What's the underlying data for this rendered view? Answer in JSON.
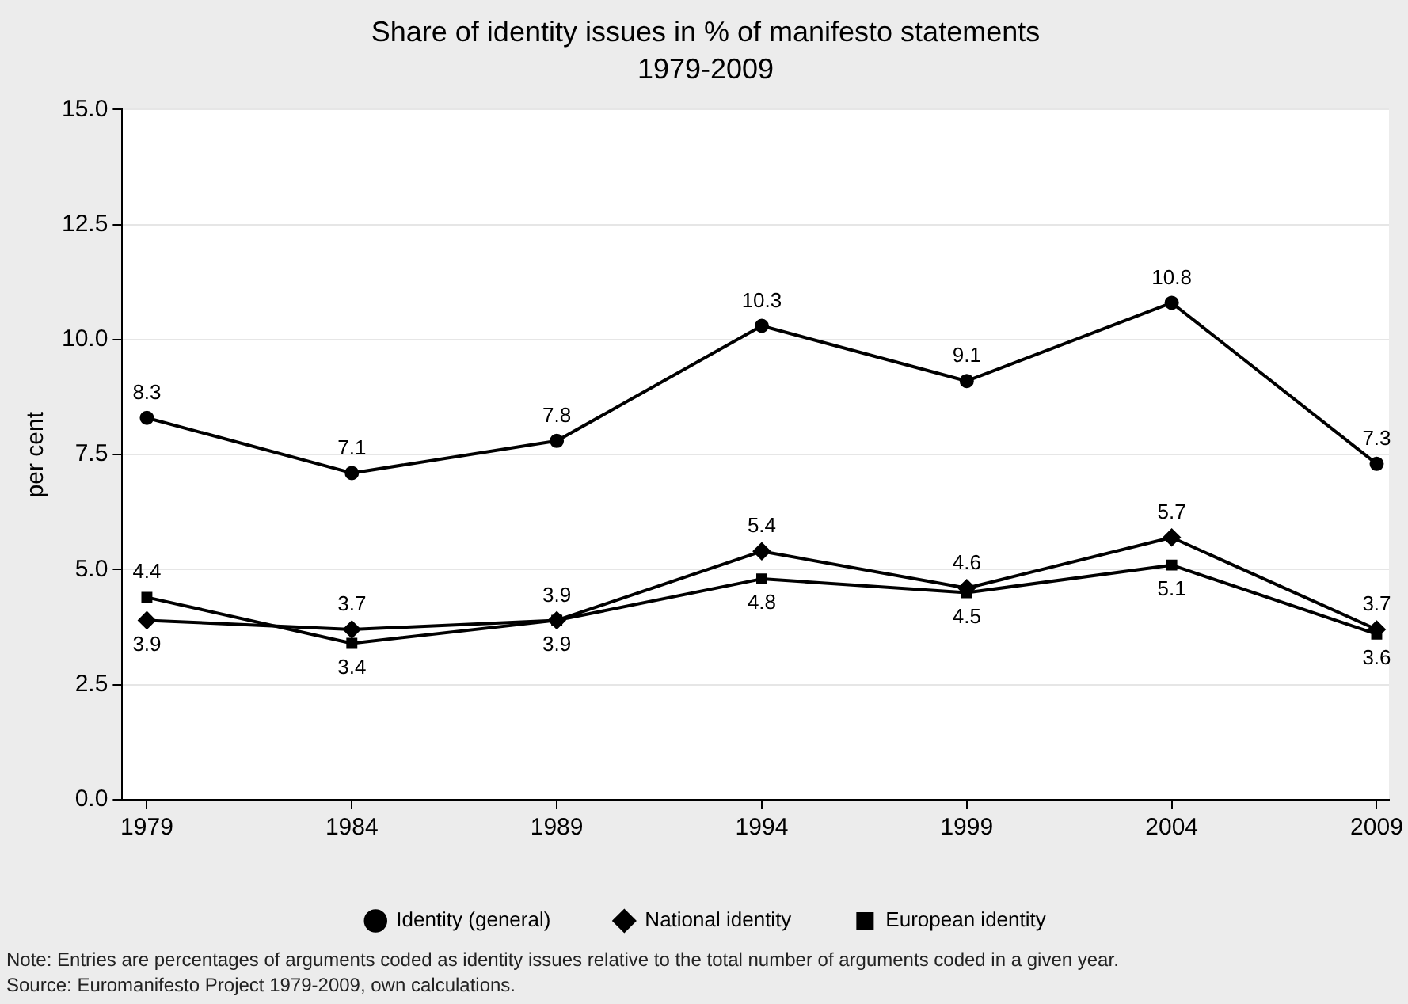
{
  "chart_data": {
    "type": "line",
    "title": "Share of identity issues in % of manifesto statements",
    "subtitle": "1979-2009",
    "ylabel": "per cent",
    "x": [
      1979,
      1984,
      1989,
      1994,
      1999,
      2004,
      2009
    ],
    "series": [
      {
        "name": "Identity (general)",
        "color": "#000000",
        "marker": "circle",
        "values": [
          8.3,
          7.1,
          7.8,
          10.3,
          9.1,
          10.8,
          7.3
        ]
      },
      {
        "name": "National identity",
        "color": "#000000",
        "marker": "diamond",
        "values": [
          3.9,
          3.7,
          3.9,
          5.4,
          4.6,
          5.7,
          3.7
        ]
      },
      {
        "name": "European identity",
        "color": "#000000",
        "marker": "square",
        "values": [
          4.4,
          3.4,
          3.9,
          4.8,
          4.5,
          5.1,
          3.6
        ]
      }
    ],
    "xlim": [
      1978.4,
      2009.3
    ],
    "xticks": [
      1979,
      1984,
      1989,
      1994,
      1999,
      2004,
      2009
    ],
    "ylim": [
      0,
      15
    ],
    "yticks": [
      {
        "value": 0,
        "label": "0.0"
      },
      {
        "value": 2.5,
        "label": "2.5"
      },
      {
        "value": 5,
        "label": "5.0"
      },
      {
        "value": 7.5,
        "label": "7.5"
      },
      {
        "value": 10,
        "label": "10.0"
      },
      {
        "value": 12.5,
        "label": "12.5"
      },
      {
        "value": 15,
        "label": "15.0"
      }
    ],
    "grid": "y",
    "legend": "bottom",
    "data_labels": true,
    "line_style": "solid",
    "annotations": [
      "Note: Entries are percentages of arguments coded as identity issues relative to the total number of arguments coded in a given year.",
      "Source: Euromanifesto Project 1979-2009, own calculations."
    ]
  }
}
